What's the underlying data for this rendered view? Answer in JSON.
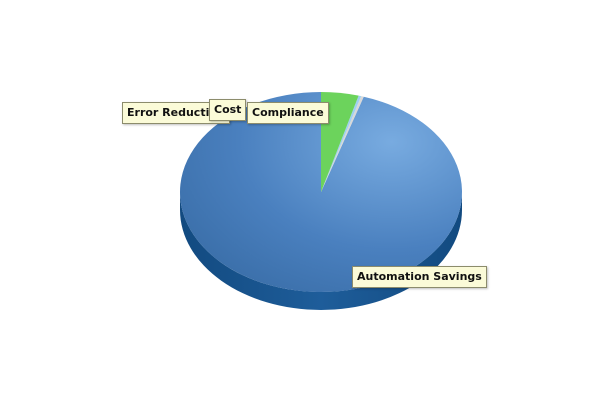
{
  "chart_data": {
    "type": "pie",
    "style": "3d",
    "title": "",
    "categories": [
      "Automation Savings",
      "Error Reduction",
      "Cost",
      "Compliance"
    ],
    "series": [
      {
        "values": [
          95.1,
          0.3,
          0.3,
          4.3
        ]
      }
    ],
    "colors": {
      "Automation Savings": "#4a86c7",
      "Error Reduction": "#d8d8d8",
      "Cost": "#9fd0f0",
      "Compliance": "#6cd35c"
    },
    "labels": {
      "automation_savings": "Automation Savings",
      "error_reduction": "Error Reduction",
      "cost": "Cost",
      "compliance": "Compliance"
    },
    "legend": "none"
  }
}
